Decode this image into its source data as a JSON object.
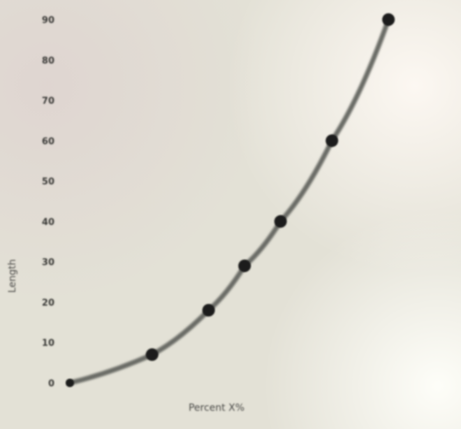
{
  "chart_data": {
    "type": "line",
    "title": "",
    "xlabel": "Percent X%",
    "ylabel": "Length",
    "xlim": [
      0,
      140
    ],
    "ylim": [
      0,
      90
    ],
    "x_ticks": [
      0,
      20,
      40,
      60,
      80,
      100,
      120,
      140
    ],
    "y_ticks": [
      0,
      10,
      20,
      30,
      40,
      50,
      60,
      70,
      80,
      90
    ],
    "y_tick_labels": [
      "0",
      "10",
      "20",
      "30",
      "40",
      "50",
      "60",
      "70",
      "80",
      "90"
    ],
    "grid": true,
    "legend": "none",
    "series": [
      {
        "x": [
          0,
          32,
          54,
          68,
          82,
          102,
          124
        ],
        "y": [
          0,
          7,
          18,
          29,
          40,
          60,
          90
        ]
      }
    ]
  },
  "colors": {
    "grid": "#3f4138",
    "line": "#6a6c66",
    "marker": "#1e1f1c",
    "paper": "#e3e1d6"
  }
}
